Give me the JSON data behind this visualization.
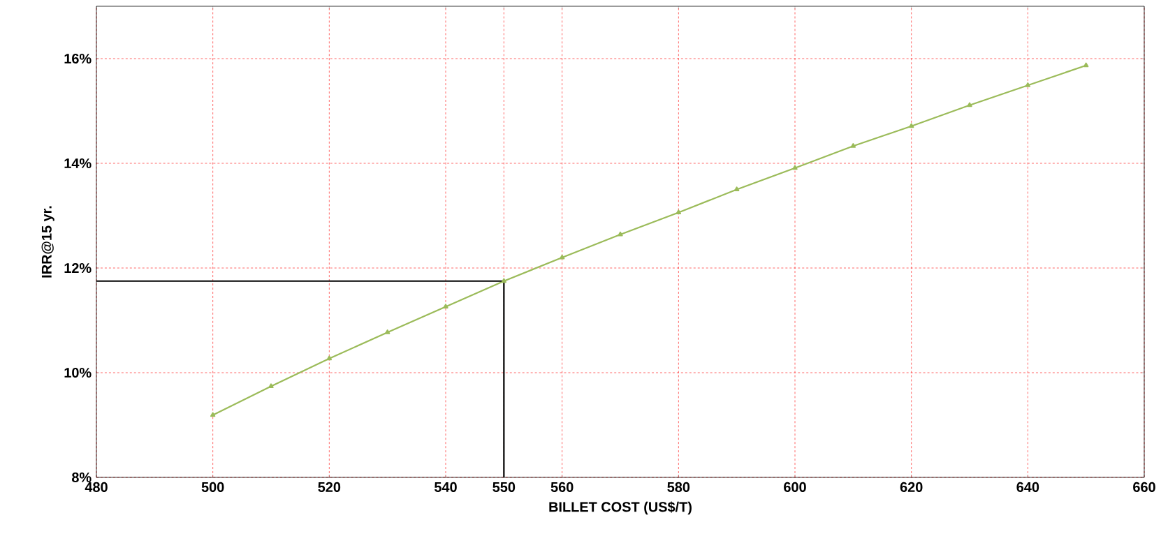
{
  "chart_data": {
    "type": "line",
    "xlabel": "BILLET COST (US$/T)",
    "ylabel": "IRR@15 yr.",
    "xlim": [
      480,
      660
    ],
    "xticks": [
      480,
      500,
      520,
      540,
      550,
      560,
      580,
      600,
      620,
      640,
      660
    ],
    "ylim": [
      8,
      17
    ],
    "yticks": [
      {
        "value": 8,
        "label": "8%"
      },
      {
        "value": 10,
        "label": "10%"
      },
      {
        "value": 12,
        "label": "12%"
      },
      {
        "value": 14,
        "label": "14%"
      },
      {
        "value": 16,
        "label": "16%"
      }
    ],
    "grid": true,
    "marker": "triangle",
    "series": [
      {
        "color": "#9bbb59",
        "x": [
          500,
          510,
          520,
          530,
          540,
          550,
          560,
          570,
          580,
          590,
          600,
          610,
          620,
          630,
          640,
          650
        ],
        "values": [
          9.19,
          9.74,
          10.27,
          10.77,
          11.26,
          11.75,
          12.2,
          12.64,
          13.06,
          13.5,
          13.91,
          14.33,
          14.71,
          15.11,
          15.49,
          15.87
        ]
      },
      {
        "color": "#000000",
        "marker": "none",
        "x": [
          480,
          550,
          550
        ],
        "values": [
          11.75,
          11.75,
          8
        ]
      }
    ]
  }
}
